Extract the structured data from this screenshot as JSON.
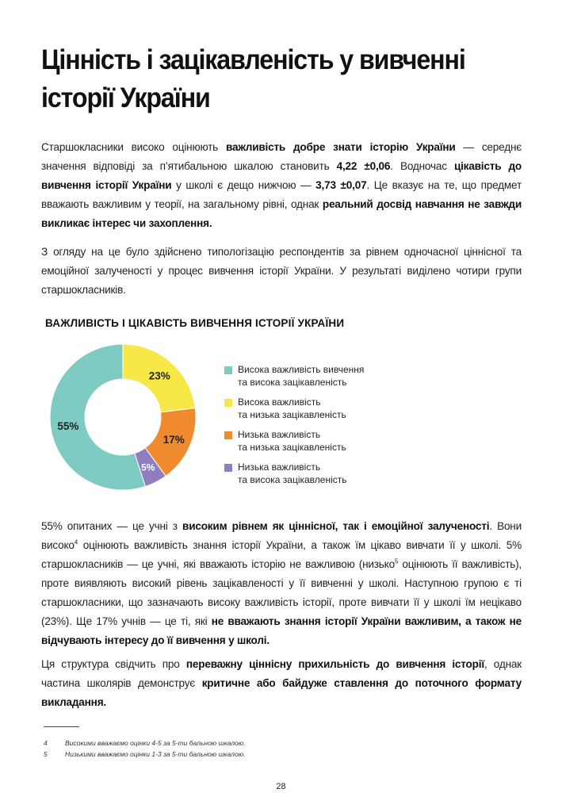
{
  "title": [
    "Цінність і зацікавленість у вивченні",
    "історії України"
  ],
  "paragraphs": [
    [
      {
        "t": "Старшокласники високо оцінюють "
      },
      {
        "t": "важливість добре знати історію України",
        "b": true
      },
      {
        "t": " — середнє значення відповіді за п’ятибальною шкалою становить "
      },
      {
        "t": "4,22 ±0,06",
        "b": true
      },
      {
        "t": ". Водночас "
      },
      {
        "t": "цікавість до вивчення історії України",
        "b": true
      },
      {
        "t": " у школі є дещо нижчою — "
      },
      {
        "t": "3,73 ±0,07",
        "b": true
      },
      {
        "t": ". Це вказує на те, що предмет вважають важливим у теорії, на загальному рівні, однак "
      },
      {
        "t": "реальний досвід навчання не завжди викликає інтерес чи захоплення.",
        "b": true
      }
    ],
    [
      {
        "t": "З огляду на це було здійснено типологізацію респондентів за рівнем одночасної ціннісної та емоційної залученості у процес вивчення історії України. У результаті виділено чотири групи старшокласників."
      }
    ],
    [
      {
        "t": "55% опитаних — це учні з "
      },
      {
        "t": "високим рівнем як ціннісної, так і емоційної залученості",
        "b": true
      },
      {
        "t": ". Вони високо"
      },
      {
        "t": "4",
        "sup": true
      },
      {
        "t": " оцінюють важливість знання історії України, а також їм цікаво вивчати її у школі. 5% старшокласників — це учні, які вважають історію не важливою (низько"
      },
      {
        "t": "5",
        "sup": true
      },
      {
        "t": " оцінюють її важливість), проте виявляють високий рівень зацікавленості у її вивченні у школі. Наступною групою є ті старшокласники, що зазначають високу важливість історії, проте вивчати її у школі їм нецікаво (23%). Ще 17% учнів — це ті, які "
      },
      {
        "t": "не вважають знання історії України важливим, а також не відчувають інтересу до її вивчення у школі.",
        "b": true
      }
    ],
    [
      {
        "t": "Ця структура свідчить про "
      },
      {
        "t": "переважну ціннісну прихильність до вивчення історії",
        "b": true
      },
      {
        "t": ", однак частина школярів демонструє "
      },
      {
        "t": "критичне або байдуже ставлення до поточного формату викладання.",
        "b": true
      }
    ]
  ],
  "chart_data": {
    "type": "pie",
    "donut": true,
    "title": "ВАЖЛИВІСТЬ І ЦІКАВІСТЬ ВИВЧЕННЯ ІСТОРІЇ УКРАЇНИ",
    "legend_position": "right",
    "slices": [
      {
        "label": "Висока важливість вивчення та висока зацікавленість",
        "legend": [
          "Висока важливість вивчення",
          "та висока зацікавленість"
        ],
        "value": 55,
        "data_label": "55%",
        "color": "#7ecbc3"
      },
      {
        "label": "Висока важливість та низька зацікавленість",
        "legend": [
          "Висока важливість",
          "та низька зацікавленість"
        ],
        "value": 23,
        "data_label": "23%",
        "color": "#f7e847"
      },
      {
        "label": "Низька важливість та низька зацікавленість",
        "legend": [
          "Низька важливість",
          "та низька зацікавленість"
        ],
        "value": 17,
        "data_label": "17%",
        "color": "#f08a2f"
      },
      {
        "label": "Низька важливість та висока зацікавленість",
        "legend": [
          "Низька важливість",
          "та висока зацікавленість"
        ],
        "value": 5,
        "data_label": "5%",
        "color": "#8f7dbf"
      }
    ],
    "draw_order_clockwise_from_top": [
      1,
      2,
      3,
      0
    ]
  },
  "footnotes": [
    {
      "n": "4",
      "text": "Високими вважаємо оцінки 4-5 за 5-ти бальною шкалою."
    },
    {
      "n": "5",
      "text": "Низькими вважаємо оцінки 1-3 за 5-ти бальною шкалою."
    }
  ],
  "page_number": "28"
}
